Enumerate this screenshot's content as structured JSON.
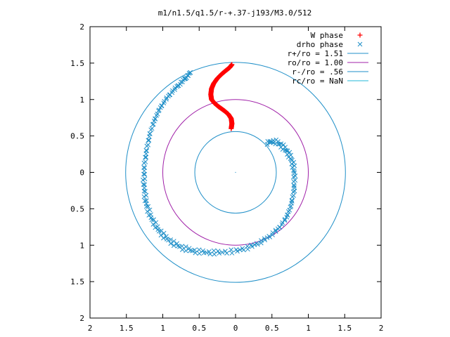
{
  "chart_data": {
    "type": "scatter",
    "title": "m1/n1.5/q1.5/r-+.37-j193/M3.0/512",
    "xlabel": "",
    "ylabel": "",
    "xlim": [
      -2,
      2
    ],
    "ylim": [
      -2,
      2
    ],
    "x_ticks": [
      -2,
      -1.5,
      -1,
      -0.5,
      0,
      0.5,
      1,
      1.5,
      2
    ],
    "x_tick_labels": [
      "2",
      "1.5",
      "1",
      "0.5",
      "0",
      "0.5",
      "1",
      "1.5",
      "2"
    ],
    "y_ticks": [
      2,
      1.5,
      1,
      0.5,
      0,
      -0.5,
      -1,
      -1.5,
      -2
    ],
    "y_tick_labels": [
      "2",
      "1.5",
      "1",
      "0.5",
      "0",
      "0.5",
      "1",
      "1.5",
      "2"
    ],
    "grid": false,
    "legend_position": "top-right",
    "circles": [
      {
        "name": "r+/ro = 1.51",
        "r": 1.51,
        "color": "#1f8fc8"
      },
      {
        "name": "ro/ro = 1.00",
        "r": 1.0,
        "color": "#a020a8"
      },
      {
        "name": "r-/ro = .56",
        "r": 0.56,
        "color": "#1f8fc8"
      },
      {
        "name": "rc/ro = NaN",
        "r": null,
        "color": "#20b8d8"
      }
    ],
    "series": [
      {
        "name": "W phase",
        "marker": "plus",
        "color": "#ff0000",
        "x": [
          -0.05,
          -0.08,
          -0.13,
          -0.19,
          -0.25,
          -0.3,
          -0.33,
          -0.34,
          -0.33,
          -0.29,
          -0.23,
          -0.16,
          -0.1,
          -0.06,
          -0.05,
          -0.06
        ],
        "y": [
          1.48,
          1.44,
          1.4,
          1.35,
          1.29,
          1.22,
          1.15,
          1.07,
          1.0,
          0.95,
          0.9,
          0.85,
          0.8,
          0.74,
          0.67,
          0.6
        ]
      },
      {
        "name": "drho phase",
        "marker": "cross",
        "color": "#1f8fc8",
        "x": [
          -0.62,
          -0.68,
          -0.76,
          -0.86,
          -0.96,
          -1.05,
          -1.12,
          -1.18,
          -1.22,
          -1.25,
          -1.26,
          -1.25,
          -1.22,
          -1.16,
          -1.08,
          -0.98,
          -0.86,
          -0.72,
          -0.57,
          -0.4,
          -0.22,
          0.0,
          0.18,
          0.34,
          0.48,
          0.6,
          0.7,
          0.76,
          0.8,
          0.81,
          0.8,
          0.76,
          0.7,
          0.62,
          0.53,
          0.43
        ],
        "y": [
          1.37,
          1.3,
          1.22,
          1.12,
          1.0,
          0.86,
          0.7,
          0.52,
          0.32,
          0.12,
          -0.08,
          -0.28,
          -0.46,
          -0.62,
          -0.76,
          -0.88,
          -0.97,
          -1.04,
          -1.08,
          -1.1,
          -1.1,
          -1.08,
          -1.03,
          -0.96,
          -0.87,
          -0.76,
          -0.62,
          -0.46,
          -0.28,
          -0.1,
          0.07,
          0.2,
          0.3,
          0.38,
          0.43,
          0.4
        ]
      }
    ]
  }
}
